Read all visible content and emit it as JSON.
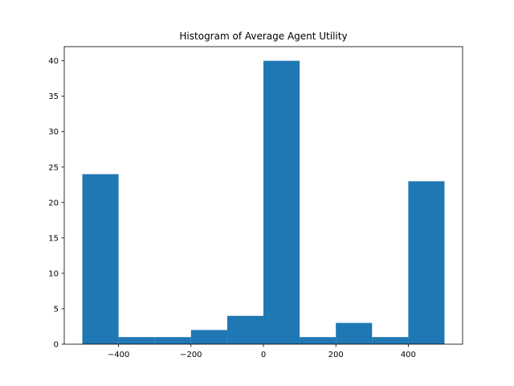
{
  "chart_data": {
    "type": "bar",
    "title": "Histogram of Average Agent Utility",
    "xlabel": "",
    "ylabel": "",
    "bins": [
      {
        "x0": -500,
        "x1": -400,
        "count": 24
      },
      {
        "x0": -400,
        "x1": -300,
        "count": 1
      },
      {
        "x0": -300,
        "x1": -200,
        "count": 1
      },
      {
        "x0": -200,
        "x1": -100,
        "count": 2
      },
      {
        "x0": -100,
        "x1": 0,
        "count": 4
      },
      {
        "x0": 0,
        "x1": 100,
        "count": 40
      },
      {
        "x0": 100,
        "x1": 200,
        "count": 1
      },
      {
        "x0": 200,
        "x1": 300,
        "count": 3
      },
      {
        "x0": 300,
        "x1": 400,
        "count": 1
      },
      {
        "x0": 400,
        "x1": 500,
        "count": 23
      }
    ],
    "xlim": [
      -550,
      550
    ],
    "ylim": [
      0,
      42
    ],
    "xticks": [
      -400,
      -200,
      0,
      200,
      400
    ],
    "xtick_labels": [
      "−400",
      "−200",
      "0",
      "200",
      "400"
    ],
    "yticks": [
      0,
      5,
      10,
      15,
      20,
      25,
      30,
      35,
      40
    ],
    "ytick_labels": [
      "0",
      "5",
      "10",
      "15",
      "20",
      "25",
      "30",
      "35",
      "40"
    ],
    "grid": false,
    "bar_color": "#1f77b4"
  }
}
